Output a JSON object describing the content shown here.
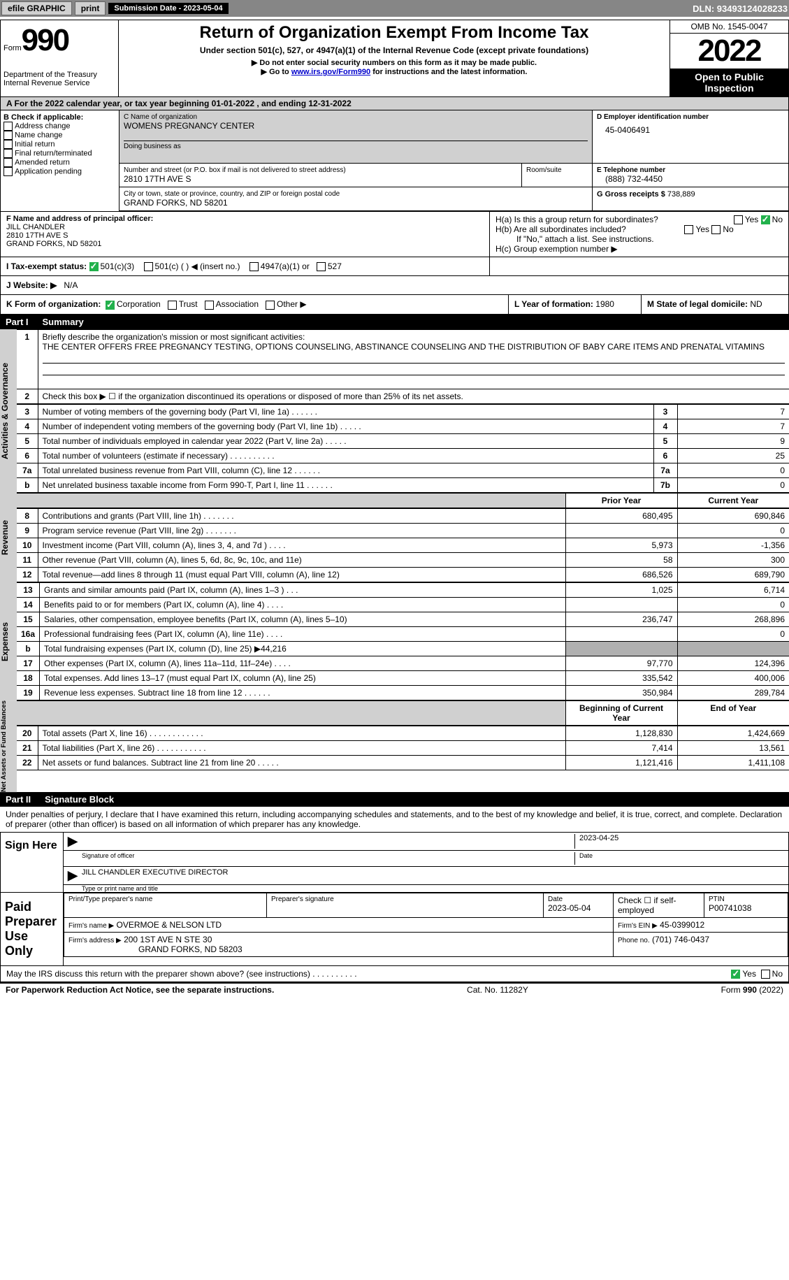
{
  "topbar": {
    "efile": "efile GRAPHIC",
    "print": "print",
    "submission_label": "Submission Date - 2023-05-04",
    "dln": "DLN: 93493124028233"
  },
  "header": {
    "form_label": "Form",
    "form_num": "990",
    "title": "Return of Organization Exempt From Income Tax",
    "subtitle": "Under section 501(c), 527, or 4947(a)(1) of the Internal Revenue Code (except private foundations)",
    "note1": "▶ Do not enter social security numbers on this form as it may be made public.",
    "note2_pre": "▶ Go to ",
    "note2_link": "www.irs.gov/Form990",
    "note2_post": " for instructions and the latest information.",
    "omb": "OMB No. 1545-0047",
    "year": "2022",
    "open": "Open to Public Inspection",
    "dept": "Department of the Treasury\nInternal Revenue Service"
  },
  "row_a": "A For the 2022 calendar year, or tax year beginning 01-01-2022    , and ending 12-31-2022",
  "box_b": {
    "title": "B Check if applicable:",
    "opts": [
      "Address change",
      "Name change",
      "Initial return",
      "Final return/terminated",
      "Amended return",
      "Application pending"
    ]
  },
  "box_c": {
    "name_label": "C Name of organization",
    "name": "WOMENS PREGNANCY CENTER",
    "dba_label": "Doing business as",
    "addr_label": "Number and street (or P.O. box if mail is not delivered to street address)",
    "room_label": "Room/suite",
    "addr": "2810 17TH AVE S",
    "city_label": "City or town, state or province, country, and ZIP or foreign postal code",
    "city": "GRAND FORKS, ND  58201"
  },
  "box_d": {
    "label": "D Employer identification number",
    "val": "45-0406491"
  },
  "box_e": {
    "label": "E Telephone number",
    "val": "(888) 732-4450"
  },
  "box_g": {
    "label": "G Gross receipts $",
    "val": "738,889"
  },
  "box_f": {
    "label": "F Name and address of principal officer:",
    "name": "JILL CHANDLER",
    "addr1": "2810 17TH AVE S",
    "addr2": "GRAND FORKS, ND  58201"
  },
  "box_h": {
    "ha": "H(a)  Is this a group return for subordinates?",
    "hb": "H(b)  Are all subordinates included?",
    "hb_note": "If \"No,\" attach a list. See instructions.",
    "hc": "H(c)  Group exemption number ▶",
    "yes": "Yes",
    "no": "No"
  },
  "box_i": {
    "label": "I  Tax-exempt status:",
    "o1": "501(c)(3)",
    "o2": "501(c) (   ) ◀ (insert no.)",
    "o3": "4947(a)(1) or",
    "o4": "527"
  },
  "box_j": {
    "label": "J  Website: ▶",
    "val": "N/A"
  },
  "box_k": {
    "label": "K Form of organization:",
    "o1": "Corporation",
    "o2": "Trust",
    "o3": "Association",
    "o4": "Other ▶"
  },
  "box_l": {
    "label": "L Year of formation:",
    "val": "1980"
  },
  "box_m": {
    "label": "M State of legal domicile:",
    "val": "ND"
  },
  "part1": {
    "num": "Part I",
    "title": "Summary",
    "line1_label": "Briefly describe the organization's mission or most significant activities:",
    "line1_val": "THE CENTER OFFERS FREE PREGNANCY TESTING, OPTIONS COUNSELING, ABSTINANCE COUNSELING AND THE DISTRIBUTION OF BABY CARE ITEMS AND PRENATAL VITAMINS",
    "line2": "Check this box ▶ ☐  if the organization discontinued its operations or disposed of more than 25% of its net assets.",
    "section_ag": "Activities & Governance",
    "section_rev": "Revenue",
    "section_exp": "Expenses",
    "section_net": "Net Assets or Fund Balances",
    "col_prior": "Prior Year",
    "col_current": "Current Year",
    "col_begin": "Beginning of Current Year",
    "col_end": "End of Year",
    "lines_ag": [
      {
        "n": "3",
        "t": "Number of voting members of the governing body (Part VI, line 1a)   .    .    .    .    .    .",
        "box": "3",
        "v": "7"
      },
      {
        "n": "4",
        "t": "Number of independent voting members of the governing body (Part VI, line 1b)  .    .    .    .    .",
        "box": "4",
        "v": "7"
      },
      {
        "n": "5",
        "t": "Total number of individuals employed in calendar year 2022 (Part V, line 2a)   .    .    .    .    .",
        "box": "5",
        "v": "9"
      },
      {
        "n": "6",
        "t": "Total number of volunteers (estimate if necessary)    .    .    .    .    .    .    .    .    .    .",
        "box": "6",
        "v": "25"
      },
      {
        "n": "7a",
        "t": "Total unrelated business revenue from Part VIII, column (C), line 12   .    .    .    .    .    .",
        "box": "7a",
        "v": "0"
      },
      {
        "n": "b",
        "t": "Net unrelated business taxable income from Form 990-T, Part I, line 11  .    .    .    .    .    .",
        "box": "7b",
        "v": "0"
      }
    ],
    "lines_rev": [
      {
        "n": "8",
        "t": "Contributions and grants (Part VIII, line 1h)   .    .    .    .    .    .    .",
        "p": "680,495",
        "c": "690,846"
      },
      {
        "n": "9",
        "t": "Program service revenue (Part VIII, line 2g)   .    .    .    .    .    .    .",
        "p": "",
        "c": "0"
      },
      {
        "n": "10",
        "t": "Investment income (Part VIII, column (A), lines 3, 4, and 7d )   .    .    .    .",
        "p": "5,973",
        "c": "-1,356"
      },
      {
        "n": "11",
        "t": "Other revenue (Part VIII, column (A), lines 5, 6d, 8c, 9c, 10c, and 11e)",
        "p": "58",
        "c": "300"
      },
      {
        "n": "12",
        "t": "Total revenue—add lines 8 through 11 (must equal Part VIII, column (A), line 12)",
        "p": "686,526",
        "c": "689,790"
      }
    ],
    "lines_exp": [
      {
        "n": "13",
        "t": "Grants and similar amounts paid (Part IX, column (A), lines 1–3 )  .    .    .",
        "p": "1,025",
        "c": "6,714"
      },
      {
        "n": "14",
        "t": "Benefits paid to or for members (Part IX, column (A), line 4)   .    .    .    .",
        "p": "",
        "c": "0"
      },
      {
        "n": "15",
        "t": "Salaries, other compensation, employee benefits (Part IX, column (A), lines 5–10)",
        "p": "236,747",
        "c": "268,896"
      },
      {
        "n": "16a",
        "t": "Professional fundraising fees (Part IX, column (A), line 11e)   .    .    .    .",
        "p": "",
        "c": "0"
      },
      {
        "n": "b",
        "t": "Total fundraising expenses (Part IX, column (D), line 25) ▶44,216",
        "p": "shaded",
        "c": "shaded"
      },
      {
        "n": "17",
        "t": "Other expenses (Part IX, column (A), lines 11a–11d, 11f–24e)   .    .    .    .",
        "p": "97,770",
        "c": "124,396"
      },
      {
        "n": "18",
        "t": "Total expenses. Add lines 13–17 (must equal Part IX, column (A), line 25)",
        "p": "335,542",
        "c": "400,006"
      },
      {
        "n": "19",
        "t": "Revenue less expenses. Subtract line 18 from line 12  .    .    .    .    .    .",
        "p": "350,984",
        "c": "289,784"
      }
    ],
    "lines_net": [
      {
        "n": "20",
        "t": "Total assets (Part X, line 16)  .    .    .    .    .    .    .    .    .    .    .    .",
        "p": "1,128,830",
        "c": "1,424,669"
      },
      {
        "n": "21",
        "t": "Total liabilities (Part X, line 26)  .    .    .    .    .    .    .    .    .    .    .",
        "p": "7,414",
        "c": "13,561"
      },
      {
        "n": "22",
        "t": "Net assets or fund balances. Subtract line 21 from line 20  .    .    .    .    .",
        "p": "1,121,416",
        "c": "1,411,108"
      }
    ]
  },
  "part2": {
    "num": "Part II",
    "title": "Signature Block",
    "decl": "Under penalties of perjury, I declare that I have examined this return, including accompanying schedules and statements, and to the best of my knowledge and belief, it is true, correct, and complete. Declaration of preparer (other than officer) is based on all information of which preparer has any knowledge.",
    "sign_here": "Sign Here",
    "sig_officer": "Signature of officer",
    "sig_date": "2023-04-25",
    "date_label": "Date",
    "officer_name": "JILL CHANDLER  EXECUTIVE DIRECTOR",
    "type_name": "Type or print name and title",
    "paid": "Paid Preparer Use Only",
    "prep_name_label": "Print/Type preparer's name",
    "prep_sig_label": "Preparer's signature",
    "prep_date_label": "Date",
    "prep_date": "2023-05-04",
    "check_self": "Check ☐ if self-employed",
    "ptin_label": "PTIN",
    "ptin": "P00741038",
    "firm_name_label": "Firm's name    ▶",
    "firm_name": "OVERMOE & NELSON LTD",
    "firm_ein_label": "Firm's EIN ▶",
    "firm_ein": "45-0399012",
    "firm_addr_label": "Firm's address ▶",
    "firm_addr1": "200 1ST AVE N STE 30",
    "firm_addr2": "GRAND FORKS, ND  58203",
    "phone_label": "Phone no.",
    "phone": "(701) 746-0437",
    "discuss": "May the IRS discuss this return with the preparer shown above? (see instructions)   .    .    .    .    .    .    .    .    .    .",
    "yes": "Yes",
    "no": "No"
  },
  "footer": {
    "left": "For Paperwork Reduction Act Notice, see the separate instructions.",
    "mid": "Cat. No. 11282Y",
    "right": "Form 990 (2022)"
  }
}
